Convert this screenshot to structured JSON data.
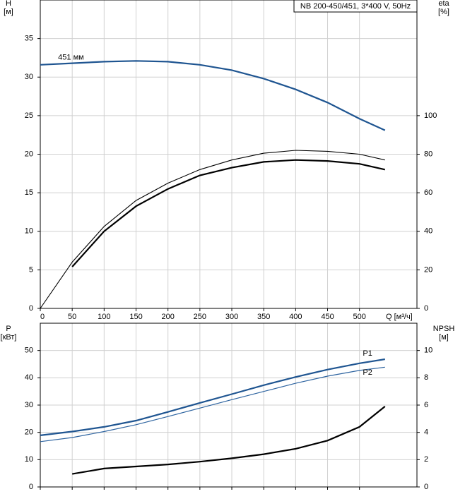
{
  "chart_data": [
    {
      "type": "line",
      "title": "NB 200-450/451, 3*400 V, 50Hz",
      "y_label": "H",
      "y_unit": "[м]",
      "y2_label": "eta",
      "y2_unit": "[%]",
      "x_label": "Q [м³/ч]",
      "xlim": [
        0,
        590
      ],
      "xticks": [
        0,
        50,
        100,
        150,
        200,
        250,
        300,
        350,
        400,
        450,
        500
      ],
      "ylim": [
        0,
        40
      ],
      "yticks": [
        0,
        5,
        10,
        15,
        20,
        25,
        30,
        35
      ],
      "y2lim": [
        0,
        160
      ],
      "y2ticks": [
        0,
        20,
        40,
        60,
        80,
        100
      ],
      "grid": true,
      "show_xtick_labels": true,
      "series": [
        {
          "name": "451 мм",
          "color": "#1f5591",
          "linewidth": 2.2,
          "axis": "y",
          "x": [
            0,
            50,
            100,
            150,
            200,
            250,
            300,
            350,
            400,
            450,
            500,
            540
          ],
          "values": [
            31.6,
            31.8,
            32.0,
            32.1,
            32.0,
            31.6,
            30.9,
            29.8,
            28.4,
            26.7,
            24.6,
            23.1
          ]
        },
        {
          "color": "#000000",
          "linewidth": 2.2,
          "axis": "y2",
          "x": [
            50,
            100,
            150,
            200,
            250,
            300,
            350,
            400,
            450,
            500,
            540
          ],
          "values": [
            21.6,
            40,
            53,
            62,
            69,
            73,
            76,
            77,
            76.5,
            75,
            72
          ]
        },
        {
          "color": "#000000",
          "linewidth": 1.1,
          "axis": "y2",
          "x": [
            0,
            50,
            100,
            150,
            200,
            250,
            300,
            350,
            400,
            450,
            500,
            540
          ],
          "values": [
            0,
            24,
            42.5,
            56,
            65,
            72,
            77,
            80.5,
            82,
            81.5,
            80,
            77
          ]
        }
      ]
    },
    {
      "type": "line",
      "y_label": "P",
      "y_unit": "[кВт]",
      "y2_label": "NPSH",
      "y2_unit": "[м]",
      "xlim": [
        0,
        590
      ],
      "xticks": [
        0,
        50,
        100,
        150,
        200,
        250,
        300,
        350,
        400,
        450,
        500
      ],
      "ylim": [
        0,
        60
      ],
      "yticks": [
        0,
        10,
        20,
        30,
        40,
        50
      ],
      "y2lim": [
        0,
        12
      ],
      "y2ticks": [
        0,
        2,
        4,
        6,
        8,
        10
      ],
      "grid": true,
      "show_xtick_labels": false,
      "series": [
        {
          "name": "P1",
          "color": "#1f5591",
          "linewidth": 2.2,
          "axis": "y",
          "x": [
            0,
            50,
            100,
            150,
            200,
            250,
            300,
            350,
            400,
            450,
            500,
            540
          ],
          "values": [
            18.9,
            20.3,
            22,
            24.3,
            27.5,
            30.8,
            34,
            37.3,
            40.3,
            43,
            45.3,
            46.8
          ]
        },
        {
          "name": "P2",
          "color": "#2e64a0",
          "linewidth": 1.2,
          "axis": "y",
          "x": [
            0,
            50,
            100,
            150,
            200,
            250,
            300,
            350,
            400,
            450,
            500,
            540
          ],
          "values": [
            16.6,
            18.1,
            20.3,
            22.8,
            25.8,
            28.9,
            32,
            35,
            38,
            40.6,
            42.7,
            43.9
          ]
        },
        {
          "color": "#000000",
          "linewidth": 2.2,
          "axis": "y2",
          "x": [
            50,
            100,
            150,
            200,
            250,
            300,
            350,
            400,
            450,
            500,
            540
          ],
          "values": [
            0.95,
            1.35,
            1.5,
            1.65,
            1.85,
            2.1,
            2.4,
            2.8,
            3.4,
            4.4,
            5.9
          ]
        }
      ]
    }
  ]
}
